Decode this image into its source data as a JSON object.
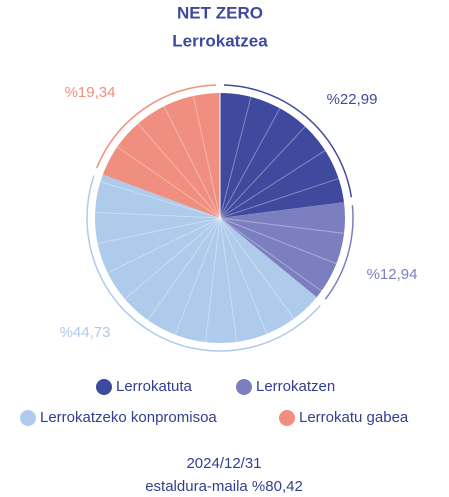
{
  "chart_data": {
    "type": "pie",
    "title": "NET ZERO",
    "subtitle": "Lerrokatzea",
    "categories": [
      "Lerrokatuta",
      "Lerrokatzen",
      "Lerrokatzeko konpromisoa",
      "Lerrokatu gabea"
    ],
    "values": [
      22.99,
      12.94,
      44.73,
      19.34
    ],
    "value_labels": [
      "%22,99",
      "%12,94",
      "%44,73",
      "%19,34"
    ],
    "colors": [
      "#3f4a9e",
      "#7c7fbf",
      "#aecbeb",
      "#f08f7f"
    ],
    "footer": [
      "2024/12/31",
      "estaldura-maila %80,42"
    ]
  }
}
